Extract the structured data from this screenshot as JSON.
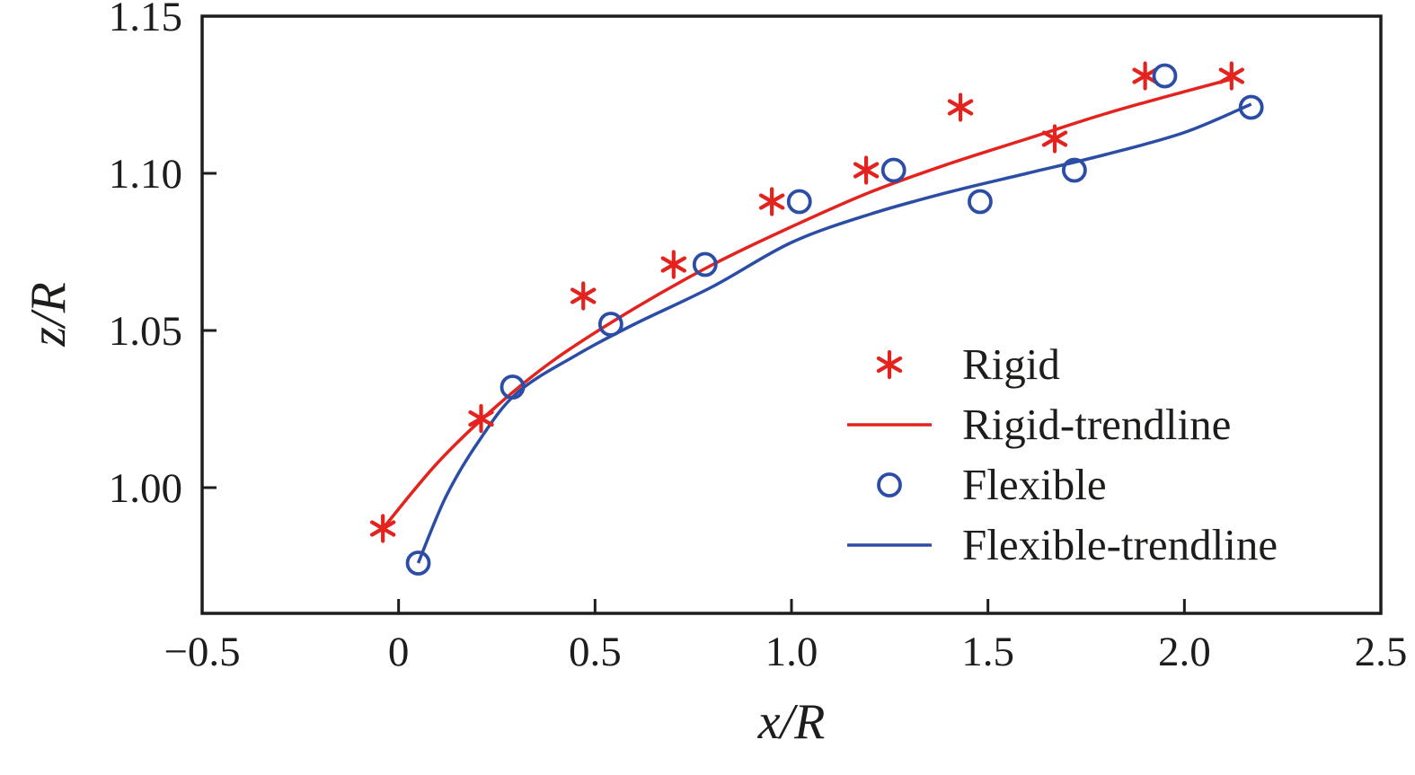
{
  "chart_data": {
    "type": "scatter",
    "title": "",
    "xlabel": "x/R",
    "ylabel": "z/R",
    "xlim": [
      -0.5,
      2.5
    ],
    "ylim": [
      0.96,
      1.15
    ],
    "xticks": [
      -0.5,
      0,
      0.5,
      1,
      1.5,
      2,
      2.5
    ],
    "xtick_labels": [
      "−0.5",
      "0",
      "0.5",
      "1.0",
      "1.5",
      "2.0",
      "2.5"
    ],
    "yticks": [
      1.0,
      1.05,
      1.1,
      1.15
    ],
    "ytick_labels": [
      "1.00",
      "1.05",
      "1.10",
      "1.15"
    ],
    "grid": false,
    "legend_position": "inside-right",
    "axis_color": "#1d1d1b",
    "series": [
      {
        "name": "Rigid",
        "type": "markers",
        "marker": "asterisk",
        "color": "#e4231f",
        "points": [
          [
            -0.04,
            0.987
          ],
          [
            0.21,
            1.022
          ],
          [
            0.47,
            1.061
          ],
          [
            0.7,
            1.071
          ],
          [
            0.95,
            1.091
          ],
          [
            1.19,
            1.101
          ],
          [
            1.43,
            1.121
          ],
          [
            1.67,
            1.111
          ],
          [
            1.9,
            1.131
          ],
          [
            2.12,
            1.131
          ]
        ]
      },
      {
        "name": "Rigid-trendline",
        "type": "line",
        "color": "#e4231f",
        "points": [
          [
            -0.04,
            0.987
          ],
          [
            0.1,
            1.008
          ],
          [
            0.25,
            1.026
          ],
          [
            0.4,
            1.041
          ],
          [
            0.6,
            1.057
          ],
          [
            0.8,
            1.071
          ],
          [
            1.0,
            1.083
          ],
          [
            1.2,
            1.094
          ],
          [
            1.4,
            1.103
          ],
          [
            1.6,
            1.111
          ],
          [
            1.8,
            1.119
          ],
          [
            2.0,
            1.126
          ],
          [
            2.12,
            1.13
          ]
        ]
      },
      {
        "name": "Flexible",
        "type": "markers",
        "marker": "circle",
        "color": "#2c4da6",
        "points": [
          [
            0.05,
            0.976
          ],
          [
            0.29,
            1.032
          ],
          [
            0.54,
            1.052
          ],
          [
            0.78,
            1.071
          ],
          [
            1.02,
            1.091
          ],
          [
            1.26,
            1.101
          ],
          [
            1.48,
            1.091
          ],
          [
            1.72,
            1.101
          ],
          [
            1.95,
            1.131
          ],
          [
            2.17,
            1.121
          ]
        ]
      },
      {
        "name": "Flexible-trendline",
        "type": "line",
        "color": "#2c4da6",
        "points": [
          [
            0.05,
            0.976
          ],
          [
            0.12,
            0.997
          ],
          [
            0.2,
            1.014
          ],
          [
            0.3,
            1.03
          ],
          [
            0.45,
            1.042
          ],
          [
            0.6,
            1.052
          ],
          [
            0.8,
            1.064
          ],
          [
            1.0,
            1.078
          ],
          [
            1.2,
            1.087
          ],
          [
            1.4,
            1.094
          ],
          [
            1.6,
            1.1
          ],
          [
            1.8,
            1.106
          ],
          [
            2.0,
            1.113
          ],
          [
            2.17,
            1.122
          ]
        ]
      }
    ],
    "legend": [
      {
        "label": "Rigid",
        "marker": "asterisk",
        "color": "#e4231f"
      },
      {
        "label": "Rigid-trendline",
        "marker": "line",
        "color": "#e4231f"
      },
      {
        "label": "Flexible",
        "marker": "circle",
        "color": "#2c4da6"
      },
      {
        "label": "Flexible-trendline",
        "marker": "line",
        "color": "#2c4da6"
      }
    ]
  }
}
